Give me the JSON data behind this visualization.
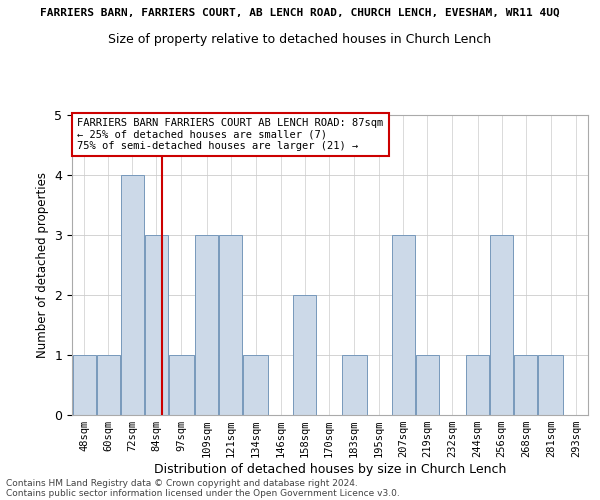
{
  "title_top": "FARRIERS BARN, FARRIERS COURT, AB LENCH ROAD, CHURCH LENCH, EVESHAM, WR11 4UQ",
  "title": "Size of property relative to detached houses in Church Lench",
  "xlabel": "Distribution of detached houses by size in Church Lench",
  "ylabel": "Number of detached properties",
  "footer1": "Contains HM Land Registry data © Crown copyright and database right 2024.",
  "footer2": "Contains public sector information licensed under the Open Government Licence v3.0.",
  "annotation_line1": "FARRIERS BARN FARRIERS COURT AB LENCH ROAD: 87sqm",
  "annotation_line2": "← 25% of detached houses are smaller (7)",
  "annotation_line3": "75% of semi-detached houses are larger (21) →",
  "bar_color": "#ccd9e8",
  "bar_edge_color": "#7799bb",
  "ref_line_color": "#cc0000",
  "ref_line_x": 87,
  "categories": [
    "48sqm",
    "60sqm",
    "72sqm",
    "84sqm",
    "97sqm",
    "109sqm",
    "121sqm",
    "134sqm",
    "146sqm",
    "158sqm",
    "170sqm",
    "183sqm",
    "195sqm",
    "207sqm",
    "219sqm",
    "232sqm",
    "244sqm",
    "256sqm",
    "268sqm",
    "281sqm",
    "293sqm"
  ],
  "values": [
    1,
    1,
    4,
    3,
    1,
    3,
    3,
    1,
    0,
    2,
    0,
    1,
    0,
    3,
    1,
    0,
    1,
    3,
    1,
    1,
    0
  ],
  "bin_edges": [
    42,
    54,
    66,
    78,
    90,
    103,
    115,
    127,
    140,
    152,
    164,
    176,
    189,
    201,
    213,
    225,
    238,
    250,
    262,
    274,
    287,
    299
  ],
  "ylim": [
    0,
    5
  ],
  "yticks": [
    0,
    1,
    2,
    3,
    4,
    5
  ],
  "figsize": [
    6.0,
    5.0
  ],
  "dpi": 100
}
